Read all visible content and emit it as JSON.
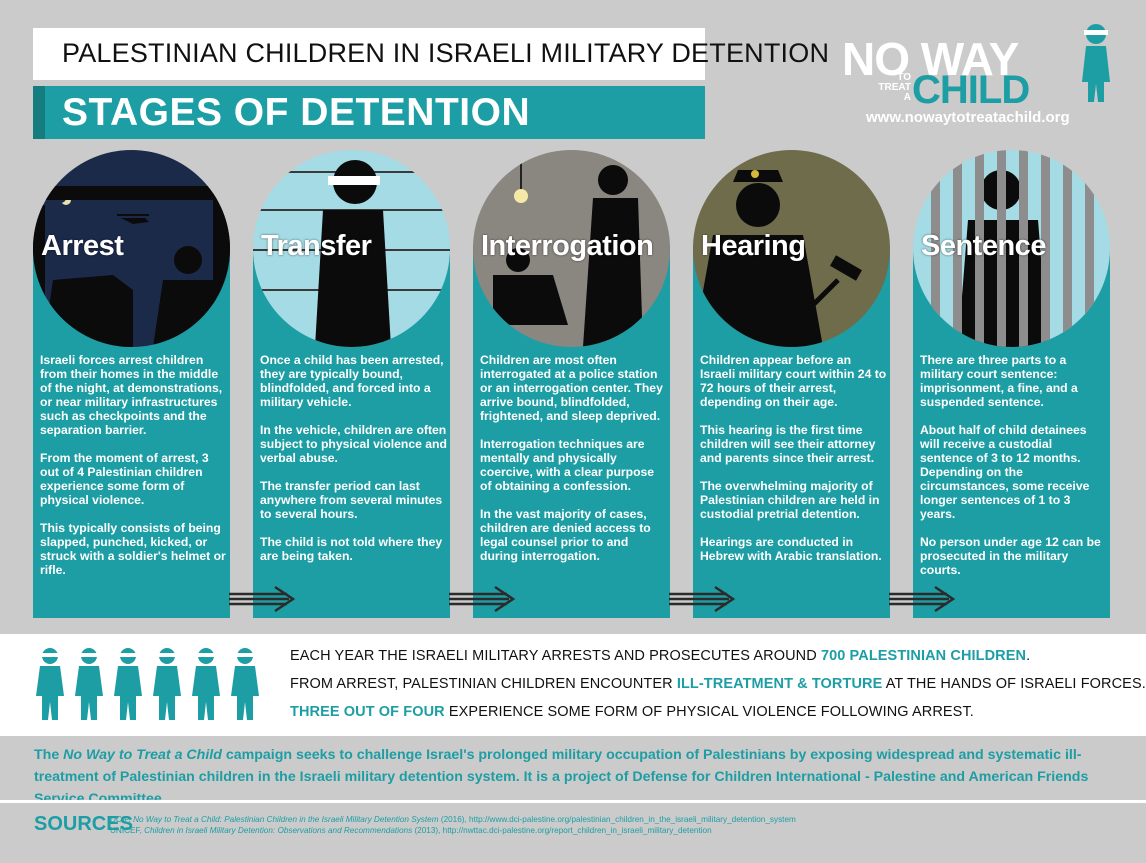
{
  "header": {
    "title": "PALESTINIAN CHILDREN IN ISRAELI MILITARY DETENTION",
    "subtitle": "STAGES OF DETENTION"
  },
  "logo": {
    "line1": "NO WAY",
    "small_to": "TO",
    "small_treat": "TREAT",
    "small_a": "A",
    "line2": "CHILD",
    "url": "www.nowaytotreatachild.org"
  },
  "stages": [
    {
      "label": "Arrest",
      "paragraphs": [
        "Israeli forces arrest children from their homes in the middle of the night, at demonstrations, or near military infrastructures such as checkpoints and the separation barrier.",
        "From the moment of arrest, 3 out of 4 Palestinian children experience some form of physical violence.",
        "This typically consists of being slapped, punched, kicked, or struck with a soldier's helmet or rifle."
      ]
    },
    {
      "label": "Transfer",
      "paragraphs": [
        "Once a child has been arrested, they are typically bound, blindfolded, and forced into a military vehicle.",
        "In the vehicle, children are often subject to physical violence and verbal abuse.",
        "The transfer period can last anywhere from several minutes to several hours.",
        "The child is not told where they are being taken."
      ]
    },
    {
      "label": "Interrogation",
      "paragraphs": [
        "Children are most often interrogated at a police station or an interrogation center. They arrive bound, blindfolded, frightened, and sleep deprived.",
        "Interrogation techniques are mentally and physically coercive, with a clear purpose of obtaining a confession.",
        "In the vast majority of cases, children are denied access to legal counsel prior to and during interrogation."
      ]
    },
    {
      "label": "Hearing",
      "paragraphs": [
        "Children appear before an Israeli military court within 24 to 72 hours of their arrest, depending on their age.",
        "This hearing is the first time children will see their attorney and parents since their arrest.",
        "The overwhelming majority of Palestinian children are held in custodial pretrial detention.",
        "Hearings are conducted in Hebrew with Arabic translation."
      ]
    },
    {
      "label": "Sentence",
      "paragraphs": [
        "There are three parts to a military court sentence: imprisonment, a fine, and a suspended sentence.",
        "About half of child detainees will receive a custodial sentence of 3 to 12 months. Depending on the circumstances, some receive longer sentences of 1 to 3 years.",
        "No person under age 12 can be prosecuted in the military courts."
      ]
    }
  ],
  "stats": {
    "line1_pre": "EACH YEAR THE ISRAELI MILITARY ARRESTS AND PROSECUTES AROUND ",
    "line1_hl": "700 PALESTINIAN CHILDREN",
    "line1_post": ".",
    "line2_pre": "FROM ARREST, PALESTINIAN CHILDREN ENCOUNTER ",
    "line2_hl": "ILL-TREATMENT & TORTURE",
    "line2_post": " AT THE HANDS OF ISRAELI FORCES.",
    "line3_hl": "THREE OUT OF FOUR",
    "line3_post": " EXPERIENCE SOME FORM OF PHYSICAL VIOLENCE FOLLOWING ARREST."
  },
  "campaign": {
    "pre": "The ",
    "italic": "No Way to Treat a Child",
    "post": " campaign seeks to challenge Israel's prolonged military occupation of Palestinians by exposing widespread and systematic ill-treatment of Palestinian children in the Israeli military detention system. It is a project of Defense for Children International - Palestine and American Friends Service Committee."
  },
  "sources": {
    "label": "SOURCES",
    "line1_pre": "DCIP, ",
    "line1_italic": "No Way to Treat a Child: Palestinian Children in the Israeli Military Detention System",
    "line1_post": " (2016), http://www.dci-palestine.org/palestinian_children_in_the_israeli_military_detention_system",
    "line2_pre": "UNICEF, ",
    "line2_italic": "Children in Israeli Military Detention: Observations and Recommendations",
    "line2_post": " (2013), http://nwttac.dci-palestine.org/report_children_in_israeli_military_detention"
  },
  "colors": {
    "teal": "#1c9ea4",
    "background": "#cbcbcb"
  }
}
